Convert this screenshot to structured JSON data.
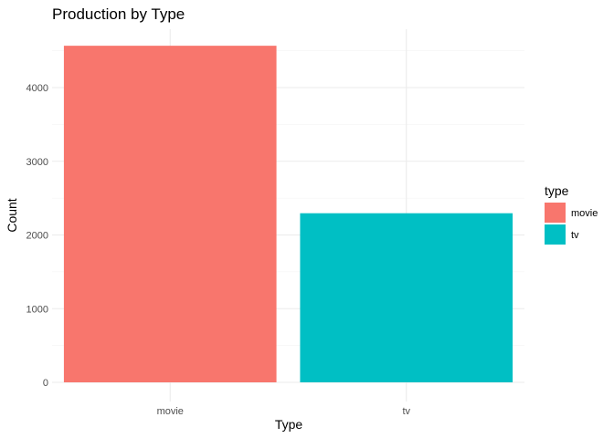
{
  "chart_data": {
    "type": "bar",
    "title": "Production by Type",
    "xlabel": "Type",
    "ylabel": "Count",
    "categories": [
      "movie",
      "tv"
    ],
    "values": [
      4568,
      2295
    ],
    "colors": [
      "#F8766D",
      "#00BFC4"
    ],
    "ylim": [
      0,
      4800
    ],
    "yticks": [
      0,
      1000,
      2000,
      3000,
      4000
    ],
    "grid": true,
    "legend": {
      "title": "type",
      "position": "right",
      "entries": [
        {
          "label": "movie",
          "color": "#F8766D"
        },
        {
          "label": "tv",
          "color": "#00BFC4"
        }
      ]
    }
  }
}
